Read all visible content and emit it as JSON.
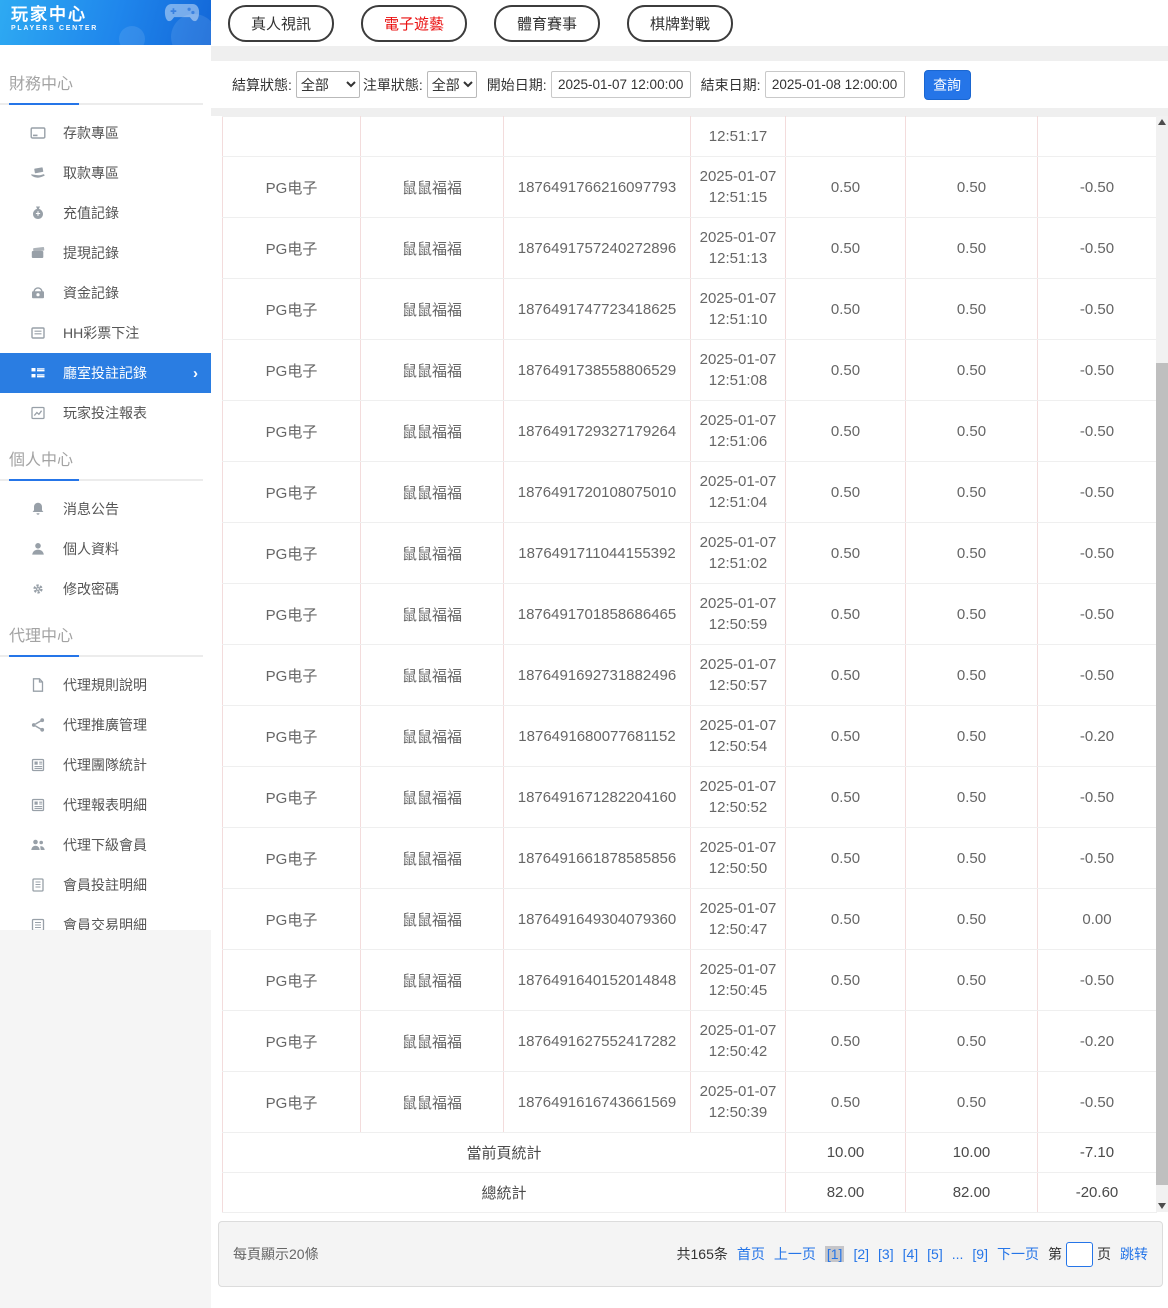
{
  "colors": {
    "accent_blue": "#2575e8",
    "link_blue": "#2575e8",
    "tab_active_red": "#ea1010",
    "sidebar_active_bg": "#2a7de2"
  },
  "sidebar": {
    "logo": {
      "title": "玩家中心",
      "subtitle": "PLAYERS CENTER",
      "icon": "gamepad-icon"
    },
    "sections": [
      {
        "title": "財務中心",
        "items": [
          {
            "label": "存款專區",
            "icon": "deposit-card-icon"
          },
          {
            "label": "取款專區",
            "icon": "withdraw-hand-icon"
          },
          {
            "label": "充值記錄",
            "icon": "moneybag-icon"
          },
          {
            "label": "提現記錄",
            "icon": "wallet-icon"
          },
          {
            "label": "資金記錄",
            "icon": "funds-icon"
          },
          {
            "label": "HH彩票下注",
            "icon": "lottery-list-icon"
          },
          {
            "label": "廳室投註記錄",
            "icon": "records-icon",
            "active": true,
            "chevron": "›"
          },
          {
            "label": "玩家投注報表",
            "icon": "report-chart-icon"
          }
        ]
      },
      {
        "title": "個人中心",
        "items": [
          {
            "label": "消息公告",
            "icon": "bell-icon"
          },
          {
            "label": "個人資料",
            "icon": "user-icon"
          },
          {
            "label": "修改密碼",
            "icon": "gear-icon"
          }
        ]
      },
      {
        "title": "代理中心",
        "items": [
          {
            "label": "代理規則說明",
            "icon": "document-icon"
          },
          {
            "label": "代理推廣管理",
            "icon": "share-icon"
          },
          {
            "label": "代理團隊統計",
            "icon": "team-stats-icon"
          },
          {
            "label": "代理報表明細",
            "icon": "report-detail-icon"
          },
          {
            "label": "代理下級會員",
            "icon": "members-icon"
          },
          {
            "label": "會員投註明細",
            "icon": "bet-detail-icon"
          },
          {
            "label": "會員交易明細",
            "icon": "transaction-detail-icon"
          }
        ]
      }
    ]
  },
  "tabs": [
    {
      "label": "真人視訊",
      "active": false
    },
    {
      "label": "電子遊藝",
      "active": true
    },
    {
      "label": "體育賽事",
      "active": false
    },
    {
      "label": "棋牌對戰",
      "active": false
    }
  ],
  "filters": {
    "settle_status": {
      "label": "結算狀態:",
      "value": "全部"
    },
    "order_status": {
      "label": "注單狀態:",
      "value": "全部"
    },
    "start_date": {
      "label": "開始日期:",
      "value": "2025-01-07 12:00:00"
    },
    "end_date": {
      "label": "結束日期:",
      "value": "2025-01-08 12:00:00"
    },
    "search_button": "查詢"
  },
  "table": {
    "partial_row_time": "12:51:17",
    "rows": [
      {
        "vendor": "PG电子",
        "game": "鼠鼠福福",
        "order_id": "1876491766216097793",
        "date": "2025-01-07",
        "time": "12:51:15",
        "bet": "0.50",
        "valid": "0.50",
        "winloss": "-0.50"
      },
      {
        "vendor": "PG电子",
        "game": "鼠鼠福福",
        "order_id": "1876491757240272896",
        "date": "2025-01-07",
        "time": "12:51:13",
        "bet": "0.50",
        "valid": "0.50",
        "winloss": "-0.50"
      },
      {
        "vendor": "PG电子",
        "game": "鼠鼠福福",
        "order_id": "1876491747723418625",
        "date": "2025-01-07",
        "time": "12:51:10",
        "bet": "0.50",
        "valid": "0.50",
        "winloss": "-0.50"
      },
      {
        "vendor": "PG电子",
        "game": "鼠鼠福福",
        "order_id": "1876491738558806529",
        "date": "2025-01-07",
        "time": "12:51:08",
        "bet": "0.50",
        "valid": "0.50",
        "winloss": "-0.50"
      },
      {
        "vendor": "PG电子",
        "game": "鼠鼠福福",
        "order_id": "1876491729327179264",
        "date": "2025-01-07",
        "time": "12:51:06",
        "bet": "0.50",
        "valid": "0.50",
        "winloss": "-0.50"
      },
      {
        "vendor": "PG电子",
        "game": "鼠鼠福福",
        "order_id": "1876491720108075010",
        "date": "2025-01-07",
        "time": "12:51:04",
        "bet": "0.50",
        "valid": "0.50",
        "winloss": "-0.50"
      },
      {
        "vendor": "PG电子",
        "game": "鼠鼠福福",
        "order_id": "1876491711044155392",
        "date": "2025-01-07",
        "time": "12:51:02",
        "bet": "0.50",
        "valid": "0.50",
        "winloss": "-0.50"
      },
      {
        "vendor": "PG电子",
        "game": "鼠鼠福福",
        "order_id": "1876491701858686465",
        "date": "2025-01-07",
        "time": "12:50:59",
        "bet": "0.50",
        "valid": "0.50",
        "winloss": "-0.50"
      },
      {
        "vendor": "PG电子",
        "game": "鼠鼠福福",
        "order_id": "1876491692731882496",
        "date": "2025-01-07",
        "time": "12:50:57",
        "bet": "0.50",
        "valid": "0.50",
        "winloss": "-0.50"
      },
      {
        "vendor": "PG电子",
        "game": "鼠鼠福福",
        "order_id": "1876491680077681152",
        "date": "2025-01-07",
        "time": "12:50:54",
        "bet": "0.50",
        "valid": "0.50",
        "winloss": "-0.20"
      },
      {
        "vendor": "PG电子",
        "game": "鼠鼠福福",
        "order_id": "1876491671282204160",
        "date": "2025-01-07",
        "time": "12:50:52",
        "bet": "0.50",
        "valid": "0.50",
        "winloss": "-0.50"
      },
      {
        "vendor": "PG电子",
        "game": "鼠鼠福福",
        "order_id": "1876491661878585856",
        "date": "2025-01-07",
        "time": "12:50:50",
        "bet": "0.50",
        "valid": "0.50",
        "winloss": "-0.50"
      },
      {
        "vendor": "PG电子",
        "game": "鼠鼠福福",
        "order_id": "1876491649304079360",
        "date": "2025-01-07",
        "time": "12:50:47",
        "bet": "0.50",
        "valid": "0.50",
        "winloss": "0.00"
      },
      {
        "vendor": "PG电子",
        "game": "鼠鼠福福",
        "order_id": "1876491640152014848",
        "date": "2025-01-07",
        "time": "12:50:45",
        "bet": "0.50",
        "valid": "0.50",
        "winloss": "-0.50"
      },
      {
        "vendor": "PG电子",
        "game": "鼠鼠福福",
        "order_id": "1876491627552417282",
        "date": "2025-01-07",
        "time": "12:50:42",
        "bet": "0.50",
        "valid": "0.50",
        "winloss": "-0.20"
      },
      {
        "vendor": "PG电子",
        "game": "鼠鼠福福",
        "order_id": "1876491616743661569",
        "date": "2025-01-07",
        "time": "12:50:39",
        "bet": "0.50",
        "valid": "0.50",
        "winloss": "-0.50"
      }
    ],
    "page_summary": {
      "label": "當前頁統計",
      "bet": "10.00",
      "valid": "10.00",
      "winloss": "-7.10"
    },
    "total_summary": {
      "label": "總統計",
      "bet": "82.00",
      "valid": "82.00",
      "winloss": "-20.60"
    }
  },
  "pagination": {
    "page_size_text": "每頁顯示20條",
    "total_text": "共165条",
    "first": "首页",
    "prev": "上一页",
    "pages": [
      {
        "label": "[1]",
        "active": true
      },
      {
        "label": "[2]",
        "active": false
      },
      {
        "label": "[3]",
        "active": false
      },
      {
        "label": "[4]",
        "active": false
      },
      {
        "label": "[5]",
        "active": false
      },
      {
        "label": "...",
        "active": false
      },
      {
        "label": "[9]",
        "active": false
      }
    ],
    "next": "下一页",
    "jump_prefix": "第",
    "jump_suffix": "页",
    "jump_button": "跳转"
  }
}
